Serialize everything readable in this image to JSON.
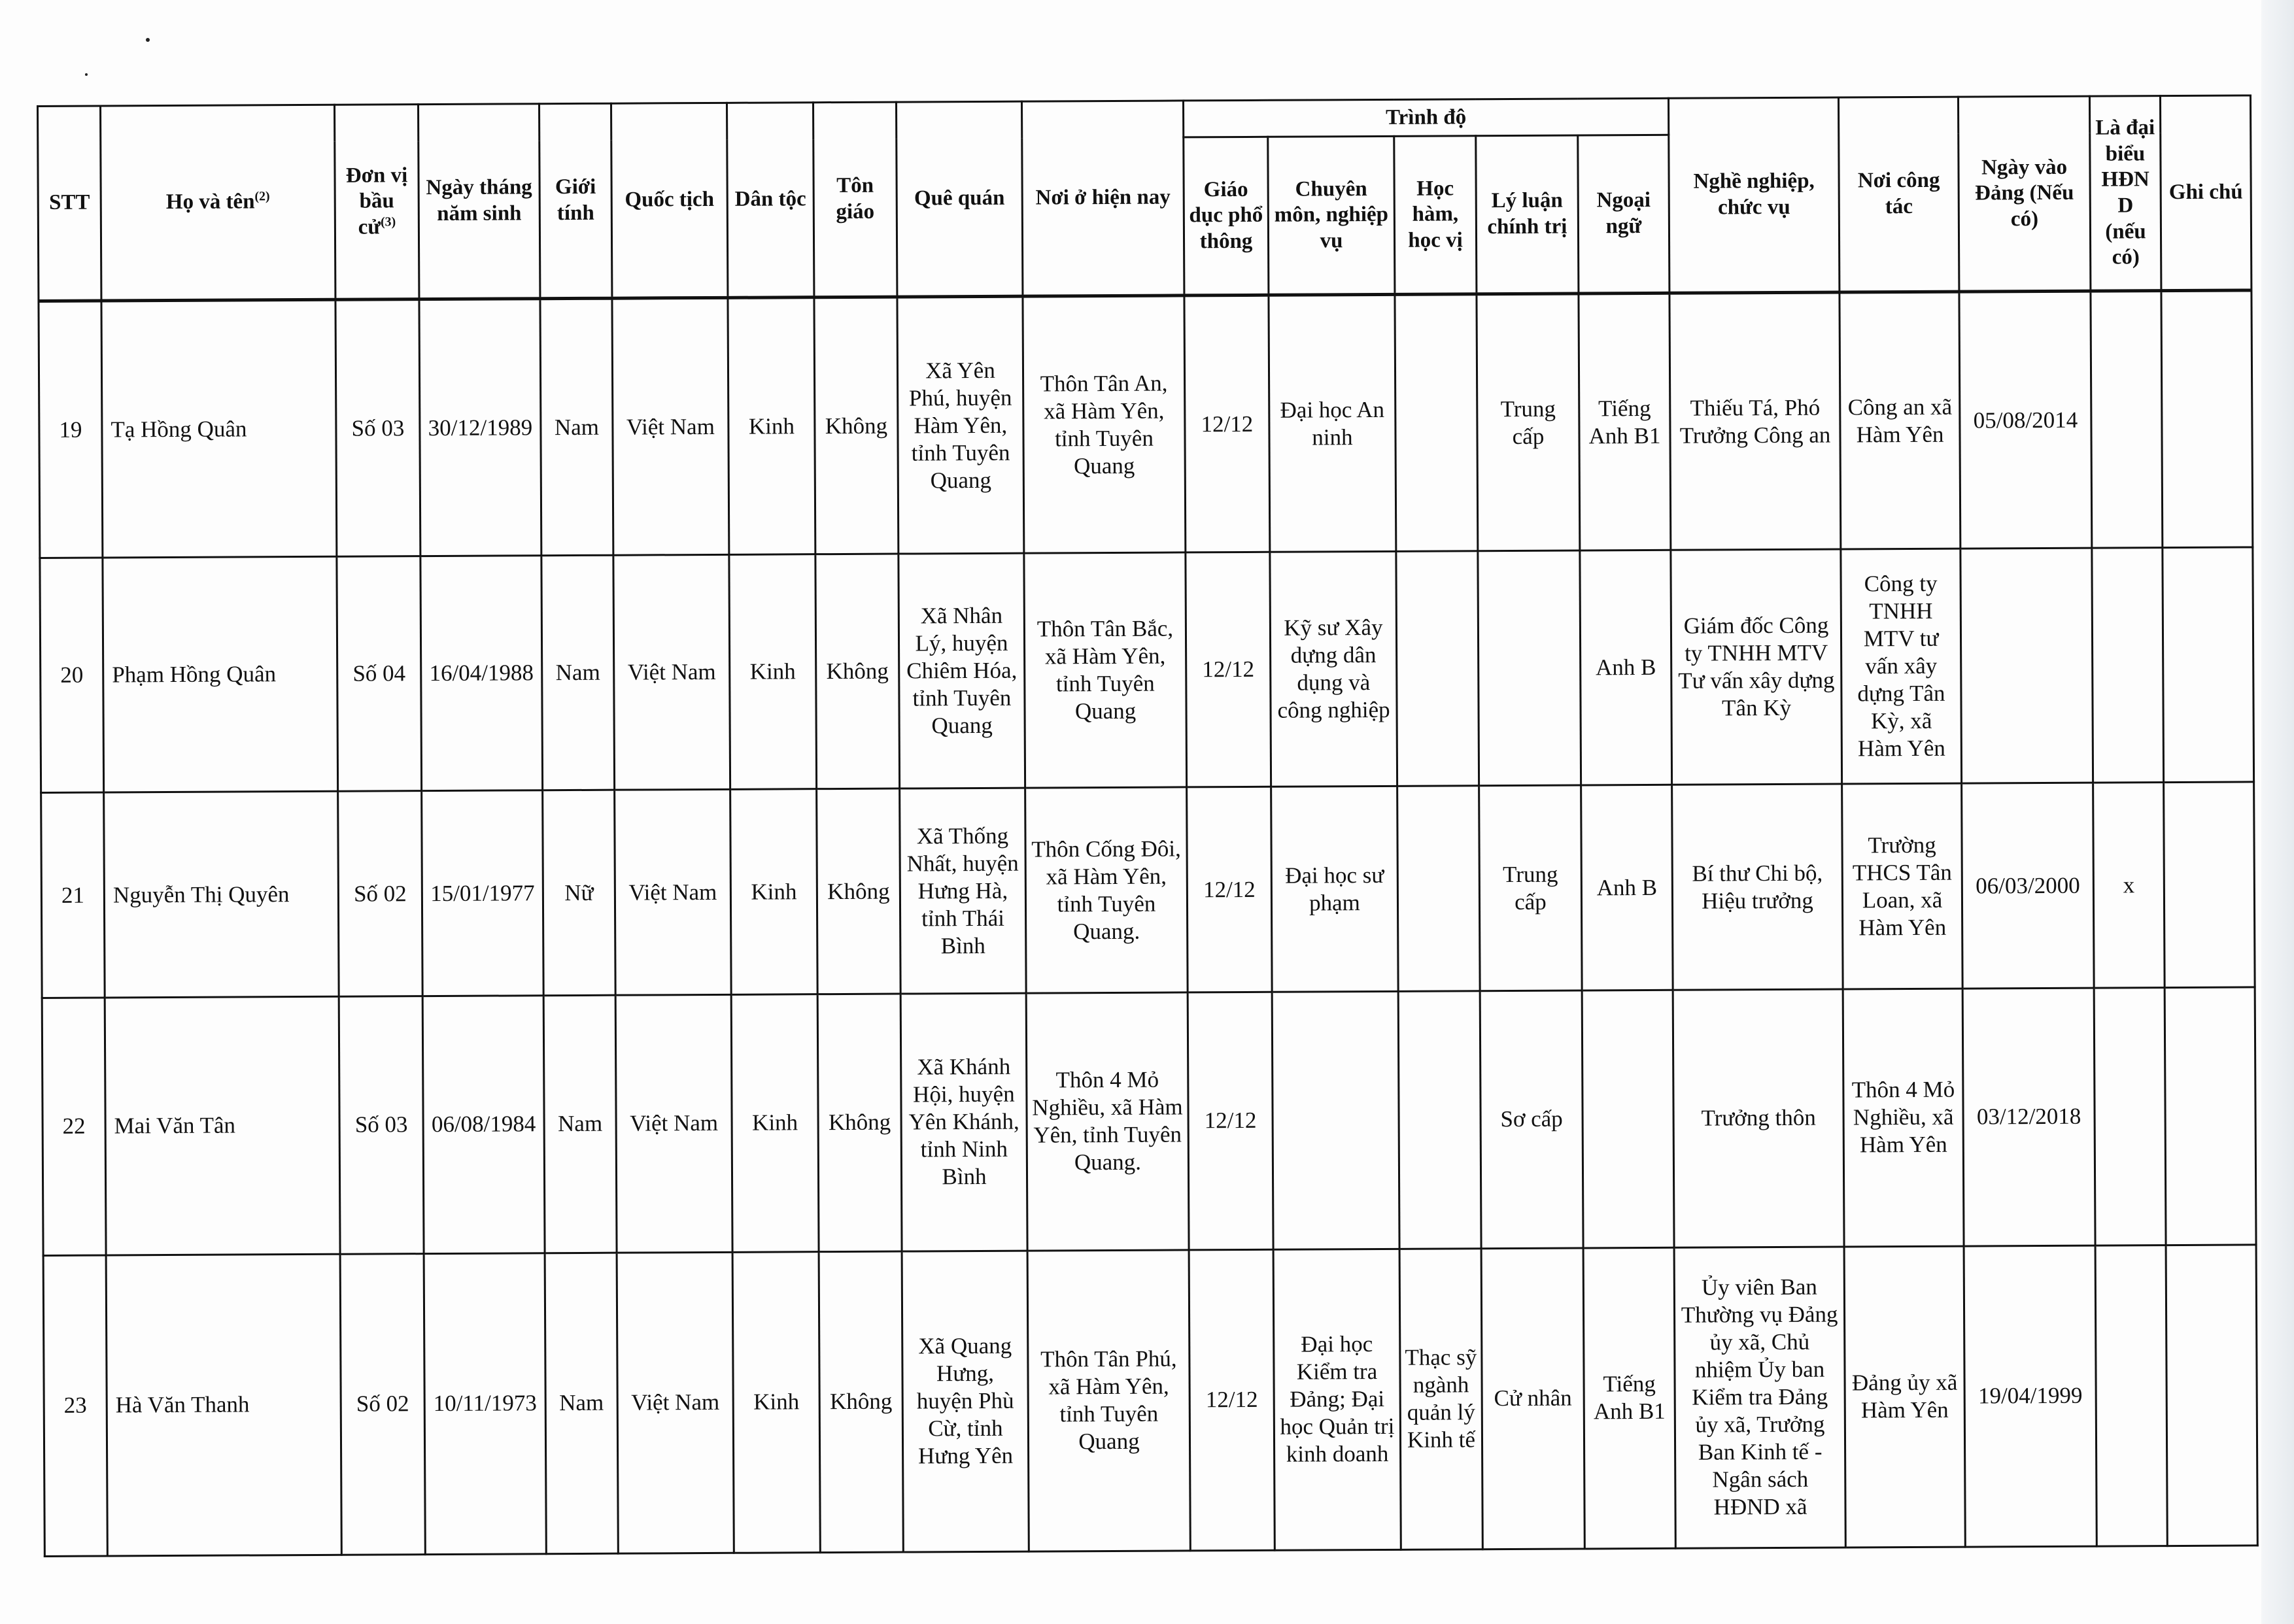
{
  "header": {
    "stt": "STT",
    "name": "Họ và tên",
    "name_note": "(2)",
    "unit": "Đơn vị bầu cử",
    "unit_note": "(3)",
    "dob": "Ngày tháng năm sinh",
    "gender": "Giới tính",
    "nationality": "Quốc tịch",
    "ethnicity": "Dân tộc",
    "religion": "Tôn giáo",
    "hometown": "Quê quán",
    "residence": "Nơi ở hiện nay",
    "education_group": "Trình độ",
    "general_edu": "Giáo dục phổ thông",
    "specialty": "Chuyên môn, nghiệp vụ",
    "degree": "Học hàm, học vị",
    "politics": "Lý luận chính trị",
    "language": "Ngoại ngữ",
    "occupation": "Nghề nghiệp, chức vụ",
    "workplace": "Nơi công tác",
    "party_date": "Ngày vào Đảng (Nếu có)",
    "delegate": "Là đại biểu HĐND (nếu có)",
    "note": "Ghi chú"
  },
  "rows": [
    {
      "stt": "19",
      "name": "Tạ Hồng Quân",
      "unit": "Số 03",
      "dob": "30/12/1989",
      "gender": "Nam",
      "nationality": "Việt Nam",
      "ethnicity": "Kinh",
      "religion": "Không",
      "hometown": "Xã Yên Phú, huyện Hàm Yên, tỉnh Tuyên Quang",
      "residence": "Thôn Tân An, xã Hàm Yên, tỉnh Tuyên Quang",
      "general_edu": "12/12",
      "specialty": "Đại học An ninh",
      "degree": "",
      "politics": "Trung cấp",
      "language": "Tiếng Anh B1",
      "occupation": "Thiếu Tá, Phó Trưởng Công an",
      "workplace": "Công an xã Hàm Yên",
      "party_date": "05/08/2014",
      "delegate": "",
      "note": ""
    },
    {
      "stt": "20",
      "name": "Phạm Hồng Quân",
      "unit": "Số 04",
      "dob": "16/04/1988",
      "gender": "Nam",
      "nationality": "Việt Nam",
      "ethnicity": "Kinh",
      "religion": "Không",
      "hometown": "Xã Nhân Lý, huyện Chiêm Hóa, tỉnh Tuyên Quang",
      "residence": "Thôn Tân Bắc, xã Hàm Yên, tỉnh Tuyên Quang",
      "general_edu": "12/12",
      "specialty": "Kỹ sư Xây dựng dân dụng và công nghiệp",
      "degree": "",
      "politics": "",
      "language": "Anh B",
      "occupation": "Giám đốc Công ty TNHH MTV Tư vấn xây dựng Tân Kỳ",
      "workplace": "Công ty TNHH MTV tư vấn xây dựng Tân Kỳ, xã Hàm Yên",
      "party_date": "",
      "delegate": "",
      "note": ""
    },
    {
      "stt": "21",
      "name": "Nguyễn Thị Quyên",
      "unit": "Số 02",
      "dob": "15/01/1977",
      "gender": "Nữ",
      "nationality": "Việt Nam",
      "ethnicity": "Kinh",
      "religion": "Không",
      "hometown": "Xã Thống Nhất, huyện Hưng Hà, tỉnh Thái Bình",
      "residence": "Thôn Cống Đôi, xã Hàm Yên, tỉnh Tuyên Quang.",
      "general_edu": "12/12",
      "specialty": "Đại học sư phạm",
      "degree": "",
      "politics": "Trung cấp",
      "language": "Anh B",
      "occupation": "Bí thư Chi bộ, Hiệu trưởng",
      "workplace": "Trường THCS Tân Loan, xã Hàm Yên",
      "party_date": "06/03/2000",
      "delegate": "x",
      "note": ""
    },
    {
      "stt": "22",
      "name": "Mai Văn Tân",
      "unit": "Số 03",
      "dob": "06/08/1984",
      "gender": "Nam",
      "nationality": "Việt Nam",
      "ethnicity": "Kinh",
      "religion": "Không",
      "hometown": "Xã Khánh Hội, huyện Yên Khánh, tỉnh Ninh Bình",
      "residence": "Thôn 4 Mỏ Nghiều, xã Hàm Yên, tỉnh Tuyên Quang.",
      "general_edu": "12/12",
      "specialty": "",
      "degree": "",
      "politics": "Sơ cấp",
      "language": "",
      "occupation": "Trưởng thôn",
      "workplace": "Thôn 4 Mỏ Nghiều, xã Hàm Yên",
      "party_date": "03/12/2018",
      "delegate": "",
      "note": ""
    },
    {
      "stt": "23",
      "name": "Hà Văn Thanh",
      "unit": "Số 02",
      "dob": "10/11/1973",
      "gender": "Nam",
      "nationality": "Việt Nam",
      "ethnicity": "Kinh",
      "religion": "Không",
      "hometown": "Xã Quang Hưng, huyện Phù Cừ, tỉnh Hưng Yên",
      "residence": "Thôn Tân Phú, xã Hàm Yên, tỉnh Tuyên Quang",
      "general_edu": "12/12",
      "specialty": "Đại học Kiểm tra Đảng; Đại học Quản trị kinh doanh",
      "degree": "Thạc sỹ ngành quản lý Kinh tế",
      "politics": "Cử nhân",
      "language": "Tiếng Anh B1",
      "occupation": "Ủy viên Ban Thường vụ Đảng ủy xã, Chủ nhiệm Ủy ban Kiểm tra Đảng ủy xã, Trưởng Ban Kinh tế - Ngân sách HĐND xã",
      "workplace": "Đảng ủy xã Hàm Yên",
      "party_date": "19/04/1999",
      "delegate": "",
      "note": ""
    }
  ]
}
